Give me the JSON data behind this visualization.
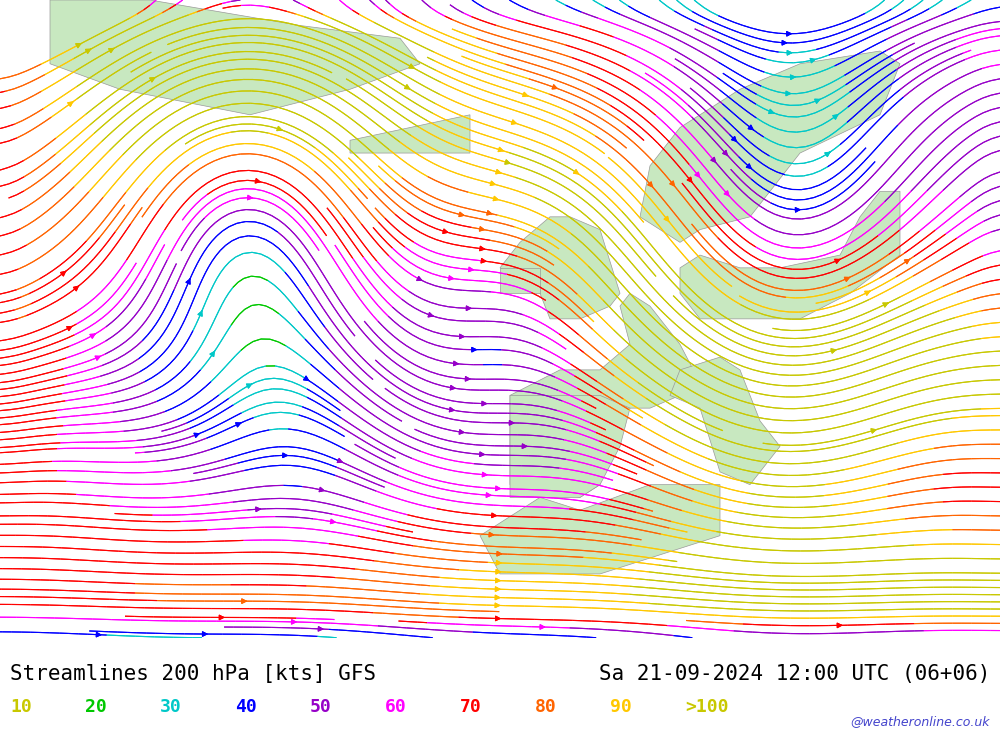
{
  "title_left": "Streamlines 200 hPa [kts] GFS",
  "title_right": "Sa 21-09-2024 12:00 UTC (06+06)",
  "watermark": "@weatheronline.co.uk",
  "legend_values": [
    "10",
    "20",
    "30",
    "40",
    "50",
    "60",
    "70",
    "80",
    "90",
    ">100"
  ],
  "legend_colors": [
    "#c8c800",
    "#00c800",
    "#00c8c8",
    "#0000ff",
    "#9600c8",
    "#ff00ff",
    "#ff0000",
    "#ff6400",
    "#ffc800",
    "#c8c800"
  ],
  "colorbar_levels": [
    10,
    20,
    30,
    40,
    50,
    60,
    70,
    80,
    90,
    100
  ],
  "colorbar_colors": [
    "#c8c800",
    "#00c800",
    "#00c8c8",
    "#0000ff",
    "#9600c8",
    "#ff00ff",
    "#ff0000",
    "#ff6400",
    "#ffc800",
    "#c8c800"
  ],
  "background_map": "#e8e8e8",
  "land_color": "#c8e8c0",
  "figsize": [
    10,
    7.33
  ],
  "dpi": 100,
  "bottom_bar_color": "#f0f0f0",
  "title_fontsize": 15,
  "legend_fontsize": 13,
  "seed": 42,
  "xlim": [
    -60,
    40
  ],
  "ylim": [
    25,
    75
  ]
}
